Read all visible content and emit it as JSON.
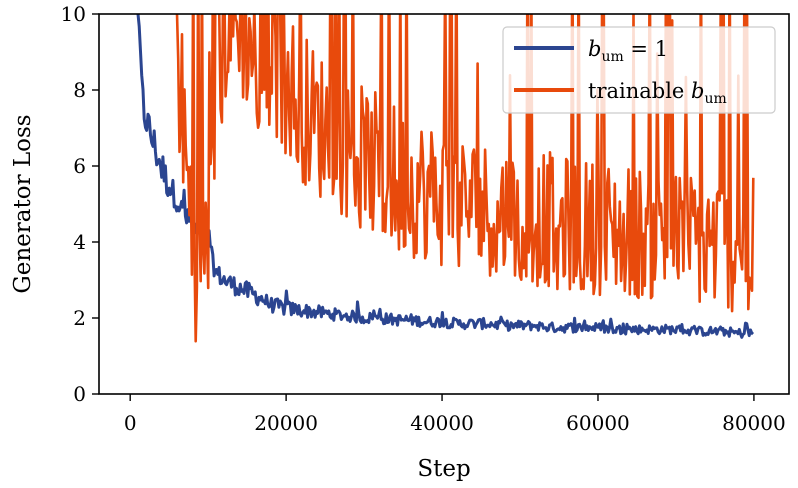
{
  "chart_data": {
    "type": "line",
    "xlabel": "Step",
    "ylabel": "Generator Loss",
    "xlim": [
      -4000,
      84500
    ],
    "ylim": [
      0,
      10
    ],
    "xticks": [
      0,
      20000,
      40000,
      60000,
      80000
    ],
    "yticks": [
      0,
      2,
      4,
      6,
      8,
      10
    ],
    "xtick_labels": [
      "0",
      "20000",
      "40000",
      "60000",
      "80000"
    ],
    "ytick_labels": [
      "0",
      "2",
      "4",
      "6",
      "8",
      "10"
    ],
    "grid": false,
    "legend_position": "top-right",
    "legend": [
      {
        "base": "b",
        "sub": "um",
        "suffix": " = 1",
        "prefix": ""
      },
      {
        "base": "b",
        "sub": "um",
        "suffix": "",
        "prefix": "trainable "
      }
    ],
    "series": [
      {
        "color": "#2b4590",
        "x": [
          1000,
          1200,
          1500,
          1800,
          2000,
          2500,
          3000,
          3500,
          4000,
          4500,
          5000,
          5500,
          6000,
          7000,
          8000,
          9000,
          10000,
          11000,
          12000,
          13000,
          14000,
          15000,
          16000,
          17000,
          18000,
          20000,
          22000,
          24000,
          26000,
          28000,
          30000,
          32000,
          34000,
          36000,
          38000,
          40000,
          42000,
          44000,
          46000,
          48000,
          50000,
          52000,
          54000,
          56000,
          58000,
          60000,
          62000,
          64000,
          66000,
          68000,
          70000,
          72000,
          74000,
          76000,
          78000,
          80000
        ],
        "y": [
          10,
          9.6,
          8.0,
          7.4,
          7.3,
          6.9,
          6.6,
          6.3,
          6.0,
          5.7,
          5.5,
          5.3,
          5.1,
          4.7,
          4.4,
          4.1,
          3.9,
          3.2,
          3.0,
          2.9,
          2.8,
          2.7,
          2.6,
          2.5,
          2.35,
          2.25,
          2.2,
          2.15,
          2.1,
          2.05,
          2.0,
          2.0,
          1.95,
          1.95,
          1.9,
          1.9,
          1.85,
          1.85,
          1.85,
          1.8,
          1.8,
          1.8,
          1.75,
          1.75,
          1.75,
          1.75,
          1.7,
          1.7,
          1.7,
          1.7,
          1.7,
          1.65,
          1.65,
          1.65,
          1.6,
          1.6
        ],
        "noise": [
          0,
          0,
          0.4,
          0.5,
          0.5,
          0.5,
          0.5,
          0.5,
          0.5,
          0.45,
          0.4,
          0.35,
          0.3,
          0.3,
          0.3,
          0.3,
          0.3,
          0.25,
          0.25,
          0.25,
          0.25,
          0.25,
          0.25,
          0.2,
          0.2,
          0.2,
          0.18,
          0.18,
          0.16,
          0.15,
          0.15,
          0.15,
          0.15,
          0.15,
          0.14,
          0.14,
          0.14,
          0.14,
          0.14,
          0.13,
          0.13,
          0.13,
          0.13,
          0.13,
          0.12,
          0.12,
          0.12,
          0.12,
          0.12,
          0.12,
          0.12,
          0.12,
          0.12,
          0.12,
          0.12,
          0.12
        ]
      },
      {
        "color": "#e84a0c",
        "x": [
          6000,
          7000,
          8000,
          9000,
          10000,
          12000,
          14000,
          16000,
          18000,
          20000,
          22000,
          24000,
          26000,
          28000,
          30000,
          32000,
          34000,
          36000,
          38000,
          40000,
          42000,
          44000,
          46000,
          48000,
          50000,
          52000,
          54000,
          56000,
          58000,
          60000,
          62000,
          64000,
          66000,
          68000,
          70000,
          72000,
          74000,
          76000,
          78000,
          80000
        ],
        "y": [
          9.0,
          6.5,
          4.0,
          3.2,
          3.8,
          9.5,
          9.8,
          9.0,
          8.5,
          8.3,
          7.6,
          7.1,
          6.9,
          6.5,
          6.1,
          5.9,
          5.7,
          5.5,
          5.4,
          5.2,
          5.0,
          5.0,
          4.9,
          4.8,
          4.7,
          4.6,
          4.6,
          4.5,
          4.4,
          4.4,
          4.35,
          4.3,
          4.25,
          4.2,
          4.1,
          4.1,
          4.0,
          3.95,
          3.9,
          3.9
        ],
        "noise": [
          2.0,
          2.5,
          2.5,
          2.0,
          2.0,
          2.0,
          2.0,
          2.0,
          2.0,
          2.0,
          2.0,
          2.0,
          2.0,
          2.0,
          2.0,
          2.0,
          2.0,
          1.9,
          1.9,
          1.9,
          1.9,
          1.8,
          1.8,
          1.8,
          1.8,
          1.8,
          1.8,
          1.8,
          1.8,
          1.8,
          1.8,
          1.8,
          1.8,
          1.8,
          1.8,
          1.8,
          1.8,
          1.8,
          1.8,
          1.8
        ]
      }
    ]
  }
}
